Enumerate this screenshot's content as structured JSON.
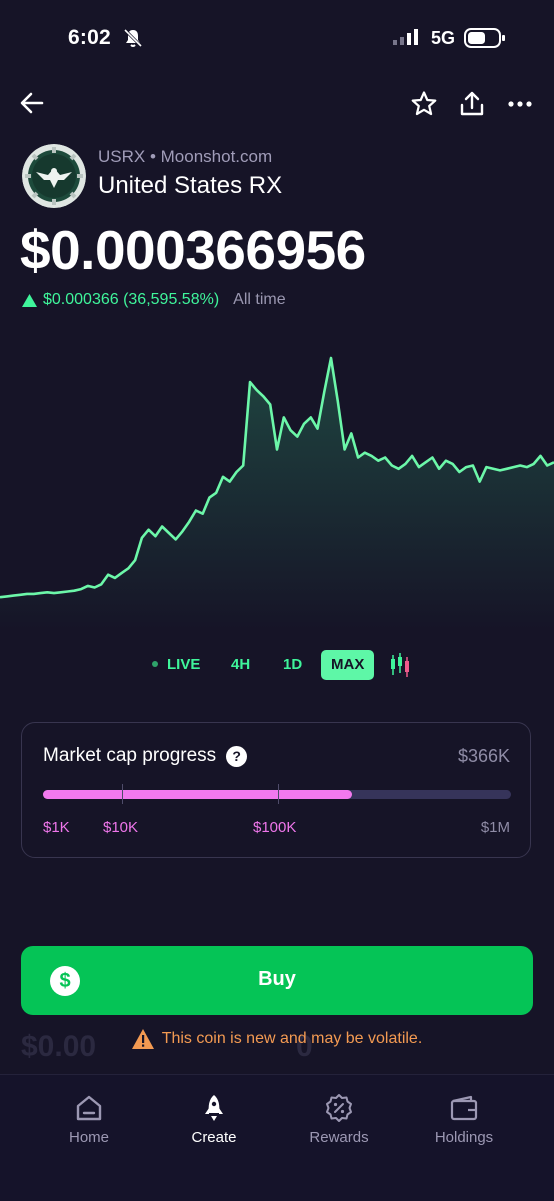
{
  "status_bar": {
    "time": "6:02",
    "network": "5G"
  },
  "coin": {
    "ticker_line": "USRX • Moonshot.com",
    "name": "United States RX",
    "price": "$0.000366956",
    "change_value": "$0.000366 (36,595.58%)",
    "change_period": "All time"
  },
  "chart_data": {
    "type": "line",
    "title": "",
    "xlabel": "",
    "ylabel": "",
    "color": "#6cf7a9",
    "values": [
      0.8,
      0.85,
      0.9,
      0.95,
      1.0,
      1.0,
      1.05,
      1.1,
      1.05,
      1.1,
      1.15,
      1.2,
      1.3,
      1.5,
      1.4,
      1.6,
      2.2,
      2.0,
      2.3,
      2.6,
      3.1,
      4.5,
      5.0,
      4.6,
      5.2,
      4.8,
      4.4,
      4.9,
      5.5,
      6.2,
      6.0,
      7.0,
      7.3,
      8.3,
      8.0,
      8.6,
      9.0,
      14.2,
      13.7,
      13.3,
      12.8,
      10.0,
      12.0,
      11.2,
      10.8,
      11.6,
      12.0,
      11.3,
      13.6,
      15.7,
      13.0,
      10.0,
      11.0,
      9.5,
      9.8,
      9.6,
      9.3,
      9.5,
      9.0,
      8.8,
      9.1,
      9.6,
      8.9,
      9.2,
      9.5,
      8.8,
      9.3,
      9.1,
      8.6,
      8.9,
      9.0,
      8.0,
      8.9,
      8.8,
      8.7,
      8.8,
      8.9,
      9.0,
      8.9,
      9.1,
      9.6,
      9.0,
      9.2
    ],
    "x_label_note": ""
  },
  "timeframes": [
    "LIVE",
    "4H",
    "1D",
    "MAX"
  ],
  "active_timeframe": "MAX",
  "market_cap": {
    "title": "Market cap progress",
    "help": "?",
    "value": "$366K",
    "progress_fraction": 0.66,
    "labels": [
      "$1K",
      "$10K",
      "$100K",
      "$1M"
    ]
  },
  "buy": {
    "icon": "$",
    "label": "Buy"
  },
  "warning": "This coin is new and may be volatile.",
  "ghost_values": {
    "amount": "$0.00",
    "qty": "0"
  },
  "nav": [
    {
      "label": "Home",
      "icon": "home-icon"
    },
    {
      "label": "Create",
      "icon": "rocket-icon"
    },
    {
      "label": "Rewards",
      "icon": "rewards-badge-icon"
    },
    {
      "label": "Holdings",
      "icon": "wallet-icon"
    }
  ],
  "colors": {
    "accent_green": "#3ff59b",
    "buy_green": "#05c456",
    "pink": "#f279ee",
    "warning": "#f39a52",
    "background": "#161427"
  }
}
